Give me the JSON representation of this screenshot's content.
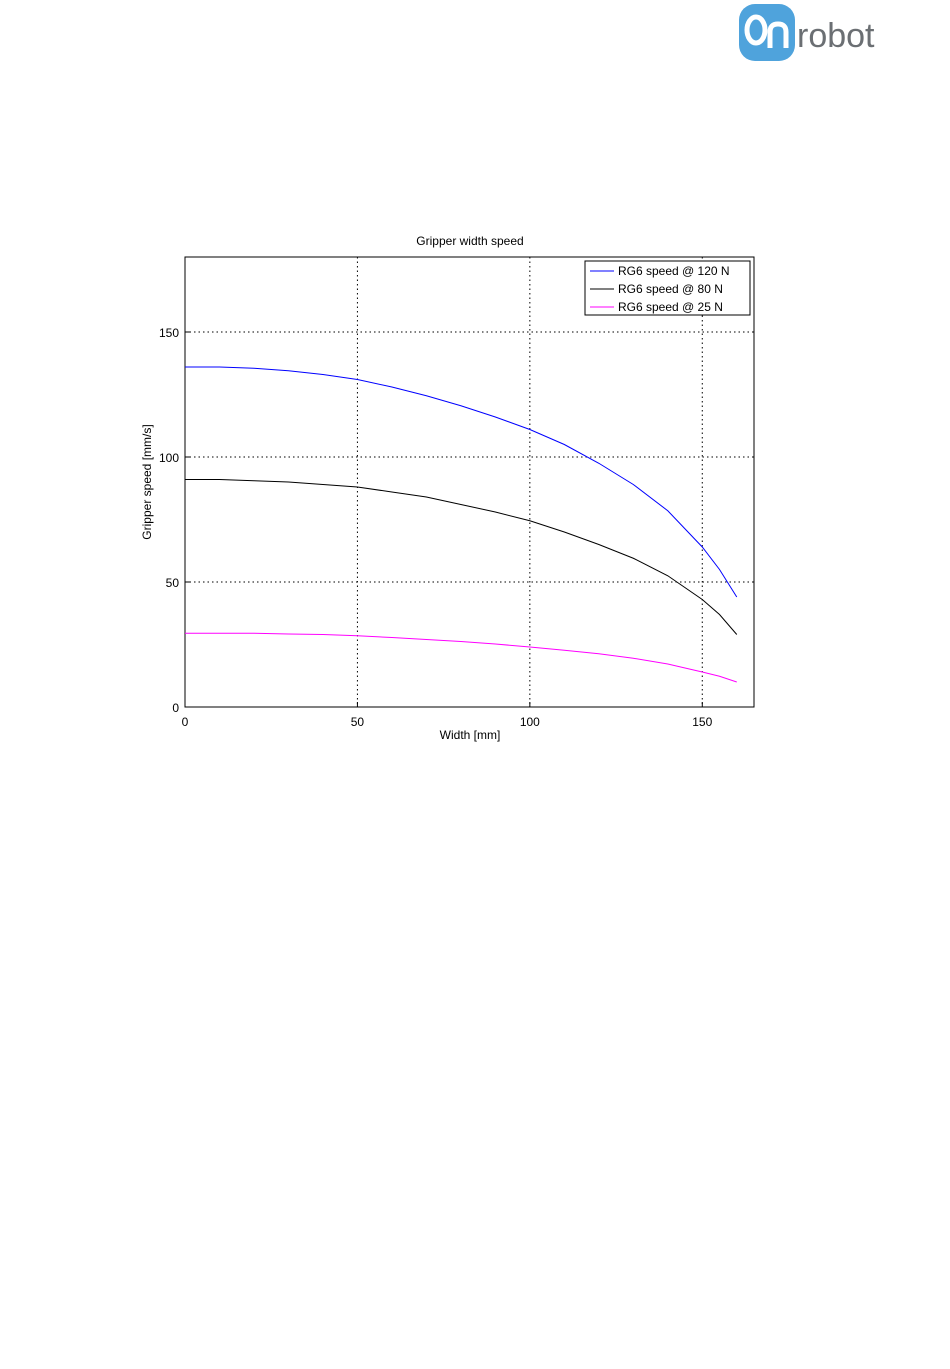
{
  "logo": {
    "text": "robot"
  },
  "chart_data": {
    "type": "line",
    "title": "Gripper width speed",
    "x_label": "Width [mm]",
    "y_label": "Gripper speed [mm/s]",
    "x": [
      0,
      10,
      20,
      30,
      40,
      50,
      60,
      70,
      80,
      90,
      100,
      110,
      120,
      130,
      140,
      150,
      155,
      160
    ],
    "series": [
      {
        "name": "RG6 speed @ 120 N",
        "color": "#0000ff",
        "values": [
          136,
          136,
          135.5,
          134.5,
          133,
          131,
          128,
          124.5,
          120.5,
          116,
          111,
          105,
          97.5,
          89,
          78.5,
          64,
          55,
          44
        ]
      },
      {
        "name": "RG6 speed @ 80 N",
        "color": "#000000",
        "values": [
          91,
          91,
          90.5,
          90,
          89,
          88,
          86,
          84,
          81,
          78,
          74.5,
          70,
          65,
          59.5,
          52.5,
          43,
          37,
          29
        ]
      },
      {
        "name": "RG6 speed @ 25 N",
        "color": "#ff00ff",
        "values": [
          29.5,
          29.5,
          29.5,
          29.2,
          29,
          28.5,
          27.8,
          27,
          26.2,
          25.2,
          24,
          22.7,
          21.3,
          19.5,
          17.2,
          14,
          12.3,
          10
        ]
      }
    ],
    "xlim": [
      0,
      165
    ],
    "ylim": [
      0,
      180
    ],
    "xticks": [
      0,
      50,
      100,
      150
    ],
    "yticks": [
      0,
      50,
      100,
      150
    ],
    "grid": true,
    "legend_position": "upper-right"
  }
}
